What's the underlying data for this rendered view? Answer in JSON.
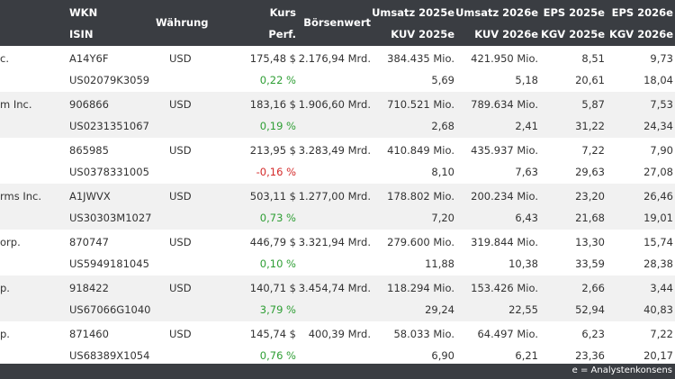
{
  "headers": {
    "wkn": "WKN",
    "isin": "ISIN",
    "waehrung": "Währung",
    "kurs": "Kurs",
    "perf": "Perf.",
    "boersenwert": "Börsenwert",
    "umsatz_2025": "Umsatz 2025e",
    "kuv_2025": "KUV 2025e",
    "umsatz_2026": "Umsatz 2026e",
    "kuv_2026": "KUV 2026e",
    "eps_2025": "EPS 2025e",
    "kgv_2025": "KGV 2025e",
    "eps_2026": "EPS 2026e",
    "kgv_2026": "KGV 2026e"
  },
  "rows": [
    {
      "name": "c.",
      "wkn": "A14Y6F",
      "isin": "US02079K3059",
      "currency": "USD",
      "kurs": "175,48 $",
      "perf": "0,22 %",
      "perf_trend": "up",
      "boersenwert": "2.176,94 Mrd.",
      "umsatz_2025": "384.435 Mio.",
      "kuv_2025": "5,69",
      "umsatz_2026": "421.950 Mio.",
      "kuv_2026": "5,18",
      "eps_2025": "8,51",
      "kgv_2025": "20,61",
      "eps_2026": "9,73",
      "kgv_2026": "18,04"
    },
    {
      "name": "m Inc.",
      "wkn": "906866",
      "isin": "US0231351067",
      "currency": "USD",
      "kurs": "183,16 $",
      "perf": "0,19 %",
      "perf_trend": "up",
      "boersenwert": "1.906,60 Mrd.",
      "umsatz_2025": "710.521 Mio.",
      "kuv_2025": "2,68",
      "umsatz_2026": "789.634 Mio.",
      "kuv_2026": "2,41",
      "eps_2025": "5,87",
      "kgv_2025": "31,22",
      "eps_2026": "7,53",
      "kgv_2026": "24,34"
    },
    {
      "name": "",
      "wkn": "865985",
      "isin": "US0378331005",
      "currency": "USD",
      "kurs": "213,95 $",
      "perf": "-0,16 %",
      "perf_trend": "down",
      "boersenwert": "3.283,49 Mrd.",
      "umsatz_2025": "410.849 Mio.",
      "kuv_2025": "8,10",
      "umsatz_2026": "435.937 Mio.",
      "kuv_2026": "7,63",
      "eps_2025": "7,22",
      "kgv_2025": "29,63",
      "eps_2026": "7,90",
      "kgv_2026": "27,08"
    },
    {
      "name": "rms Inc.",
      "wkn": "A1JWVX",
      "isin": "US30303M1027",
      "currency": "USD",
      "kurs": "503,11 $",
      "perf": "0,73 %",
      "perf_trend": "up",
      "boersenwert": "1.277,00 Mrd.",
      "umsatz_2025": "178.802 Mio.",
      "kuv_2025": "7,20",
      "umsatz_2026": "200.234 Mio.",
      "kuv_2026": "6,43",
      "eps_2025": "23,20",
      "kgv_2025": "21,68",
      "eps_2026": "26,46",
      "kgv_2026": "19,01"
    },
    {
      "name": "orp.",
      "wkn": "870747",
      "isin": "US5949181045",
      "currency": "USD",
      "kurs": "446,79 $",
      "perf": "0,10 %",
      "perf_trend": "up",
      "boersenwert": "3.321,94 Mrd.",
      "umsatz_2025": "279.600 Mio.",
      "kuv_2025": "11,88",
      "umsatz_2026": "319.844 Mio.",
      "kuv_2026": "10,38",
      "eps_2025": "13,30",
      "kgv_2025": "33,59",
      "eps_2026": "15,74",
      "kgv_2026": "28,38"
    },
    {
      "name": "p.",
      "wkn": "918422",
      "isin": "US67066G1040",
      "currency": "USD",
      "kurs": "140,71 $",
      "perf": "3,79 %",
      "perf_trend": "up",
      "boersenwert": "3.454,74 Mrd.",
      "umsatz_2025": "118.294 Mio.",
      "kuv_2025": "29,24",
      "umsatz_2026": "153.426 Mio.",
      "kuv_2026": "22,55",
      "eps_2025": "2,66",
      "kgv_2025": "52,94",
      "eps_2026": "3,44",
      "kgv_2026": "40,83"
    },
    {
      "name": "p.",
      "wkn": "871460",
      "isin": "US68389X1054",
      "currency": "USD",
      "kurs": "145,74 $",
      "perf": "0,76 %",
      "perf_trend": "up",
      "boersenwert": "400,39 Mrd.",
      "umsatz_2025": "58.033 Mio.",
      "kuv_2025": "6,90",
      "umsatz_2026": "64.497 Mio.",
      "kuv_2026": "6,21",
      "eps_2025": "6,23",
      "kgv_2025": "23,36",
      "eps_2026": "7,22",
      "kgv_2026": "20,17"
    }
  ],
  "footer": {
    "note": "e = Analystenkonsens"
  },
  "colors": {
    "header_bg": "#3a3d42",
    "row_alt_bg": "#f1f1f1",
    "positive": "#2e9e34",
    "negative": "#d42a2a"
  }
}
